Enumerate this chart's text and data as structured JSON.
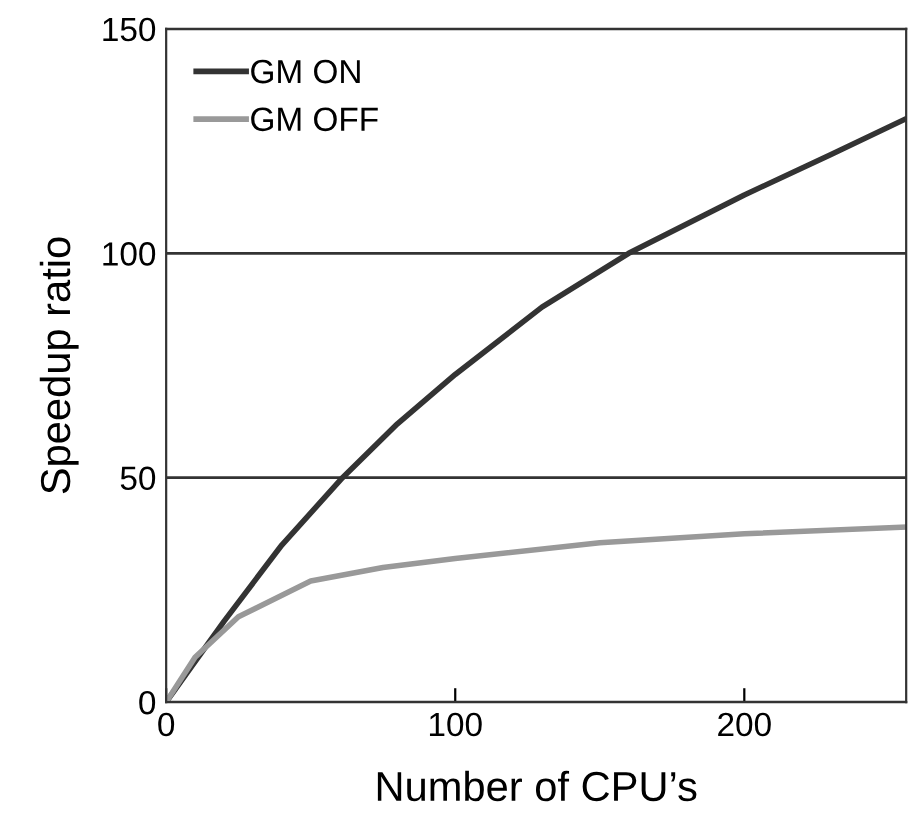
{
  "chart_data": {
    "type": "line",
    "xlabel": "Number of CPU’s",
    "ylabel": "Speedup ratio",
    "xlim": [
      0,
      256
    ],
    "ylim": [
      0,
      150
    ],
    "xticks": [
      0,
      100,
      200
    ],
    "yticks": [
      0,
      50,
      100,
      150
    ],
    "grid": "y",
    "legend": "top left",
    "marker": "none",
    "line_style": "solid",
    "series": [
      {
        "name": "GM ON",
        "color": "#333333",
        "x": [
          0,
          10,
          20,
          40,
          61,
          80,
          100,
          130,
          160,
          200,
          230,
          256
        ],
        "values": [
          0,
          9,
          18,
          35,
          50,
          62,
          73,
          88,
          100,
          113,
          122,
          130
        ]
      },
      {
        "name": "GM OFF",
        "color": "#999999",
        "x": [
          0,
          10,
          25,
          50,
          75,
          100,
          150,
          200,
          256
        ],
        "values": [
          0,
          10,
          19,
          27,
          30,
          32,
          35.5,
          37.5,
          39
        ]
      }
    ]
  }
}
